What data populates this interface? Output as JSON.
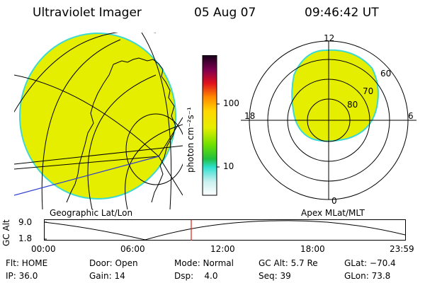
{
  "header": {
    "title": "Ultraviolet Imager",
    "date": "05 Aug 07",
    "time": "09:46:42 UT"
  },
  "colorbar": {
    "unit_label": "photon cm⁻²s⁻¹",
    "tick_labels": [
      "100",
      "10"
    ]
  },
  "geo_panel": {
    "label": "Geographic Lat/Lon"
  },
  "polar_panel": {
    "label": "Apex MLat/MLT",
    "mlt_labels": [
      "12",
      "18",
      "6",
      "0"
    ],
    "mlat_labels": [
      "60",
      "70",
      "80"
    ]
  },
  "altitude_plot": {
    "ylabel": "GC Alt",
    "y_ticks": [
      "9.0",
      "1.8"
    ],
    "x_ticks": [
      "00:00",
      "06:00",
      "12:00",
      "18:00",
      "23:59"
    ],
    "marker_time": "09:46:42"
  },
  "status": {
    "row1": [
      {
        "key": "flt",
        "text": "Flt: HOME"
      },
      {
        "key": "door",
        "text": "Door: Open"
      },
      {
        "key": "mode",
        "text": "Mode: Normal"
      },
      {
        "key": "gcalt",
        "text": "GC Alt: 5.7 Re"
      },
      {
        "key": "glat",
        "text": "GLat: −70.4"
      }
    ],
    "row2": [
      {
        "key": "ip",
        "text": "IP: 36.0"
      },
      {
        "key": "gain",
        "text": "Gain: 14"
      },
      {
        "key": "dsp",
        "text": "Dsp:    4.0"
      },
      {
        "key": "seq",
        "text": "Seq: 39"
      },
      {
        "key": "glon",
        "text": "GLon: 73.8"
      }
    ]
  },
  "colors": {
    "aurora_fill": "#e6ee00",
    "aurora_edge": "#3dd9d0",
    "marker": "#e0201a",
    "meridian_blue": "#3040d0"
  }
}
